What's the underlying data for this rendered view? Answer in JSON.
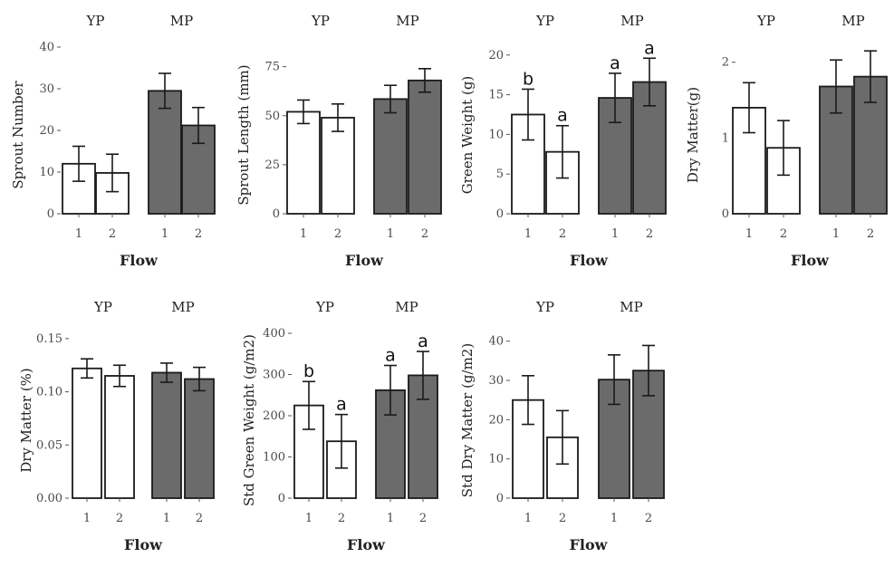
{
  "chart_data": [
    {
      "type": "bar",
      "title": "",
      "facets": [
        "YP",
        "MP"
      ],
      "categories": [
        "1",
        "2"
      ],
      "xlabel": "Flow",
      "ylabel": "Sprout Number",
      "ylim": [
        0,
        40
      ],
      "yticks": [
        "0",
        "10",
        "20",
        "30",
        "40"
      ],
      "ytick_values": [
        0,
        10,
        20,
        30,
        40
      ],
      "series": [
        {
          "name": "YP",
          "values": [
            12,
            9.8
          ],
          "errors": [
            4.2,
            4.5
          ],
          "letters": [
            "",
            ""
          ],
          "color": "#ffffff"
        },
        {
          "name": "MP",
          "values": [
            29.5,
            21.2
          ],
          "errors": [
            4.2,
            4.3
          ],
          "letters": [
            "",
            ""
          ],
          "color": "#6b6b6b"
        }
      ]
    },
    {
      "type": "bar",
      "title": "",
      "facets": [
        "YP",
        "MP"
      ],
      "categories": [
        "1",
        "2"
      ],
      "xlabel": "Flow",
      "ylabel": "Sprout Length (mm)",
      "ylim": [
        0,
        85
      ],
      "yticks": [
        "0",
        "25",
        "50",
        "75"
      ],
      "ytick_values": [
        0,
        25,
        50,
        75
      ],
      "series": [
        {
          "name": "YP",
          "values": [
            52,
            49
          ],
          "errors": [
            6,
            7
          ],
          "letters": [
            "",
            ""
          ],
          "color": "#ffffff"
        },
        {
          "name": "MP",
          "values": [
            58.5,
            68
          ],
          "errors": [
            7,
            6
          ],
          "letters": [
            "",
            ""
          ],
          "color": "#6b6b6b"
        }
      ]
    },
    {
      "type": "bar",
      "title": "",
      "facets": [
        "YP",
        "MP"
      ],
      "categories": [
        "1",
        "2"
      ],
      "xlabel": "Flow",
      "ylabel": "Green Weight (g)",
      "ylim": [
        0,
        21
      ],
      "yticks": [
        "0",
        "5",
        "10",
        "15",
        "20"
      ],
      "ytick_values": [
        0,
        5,
        10,
        15,
        20
      ],
      "series": [
        {
          "name": "YP",
          "values": [
            12.5,
            7.8
          ],
          "errors": [
            3.2,
            3.3
          ],
          "letters": [
            "b",
            "a"
          ],
          "color": "#ffffff"
        },
        {
          "name": "MP",
          "values": [
            14.6,
            16.6
          ],
          "errors": [
            3.1,
            3.0
          ],
          "letters": [
            "a",
            "a"
          ],
          "color": "#6b6b6b"
        }
      ]
    },
    {
      "type": "bar",
      "title": "",
      "facets": [
        "YP",
        "MP"
      ],
      "categories": [
        "1",
        "2"
      ],
      "xlabel": "Flow",
      "ylabel": "Dry Matter(g)",
      "ylim": [
        0,
        2.2
      ],
      "yticks": [
        "0",
        "1",
        "2"
      ],
      "ytick_values": [
        0,
        1,
        2
      ],
      "series": [
        {
          "name": "YP",
          "values": [
            1.4,
            0.87
          ],
          "errors": [
            0.33,
            0.36
          ],
          "letters": [
            "",
            ""
          ],
          "color": "#ffffff"
        },
        {
          "name": "MP",
          "values": [
            1.68,
            1.81
          ],
          "errors": [
            0.35,
            0.34
          ],
          "letters": [
            "",
            ""
          ],
          "color": "#6b6b6b"
        }
      ]
    },
    {
      "type": "bar",
      "title": "",
      "facets": [
        "YP",
        "MP"
      ],
      "categories": [
        "1",
        "2"
      ],
      "xlabel": "Flow",
      "ylabel": "Dry Matter (%)",
      "ylim": [
        0,
        0.155
      ],
      "yticks": [
        "0.00",
        "0.05",
        "0.10",
        "0.15"
      ],
      "ytick_values": [
        0,
        0.05,
        0.1,
        0.15
      ],
      "series": [
        {
          "name": "YP",
          "values": [
            0.122,
            0.115
          ],
          "errors": [
            0.009,
            0.01
          ],
          "letters": [
            "",
            ""
          ],
          "color": "#ffffff"
        },
        {
          "name": "MP",
          "values": [
            0.118,
            0.112
          ],
          "errors": [
            0.009,
            0.011
          ],
          "letters": [
            "",
            ""
          ],
          "color": "#6b6b6b"
        }
      ]
    },
    {
      "type": "bar",
      "title": "",
      "facets": [
        "YP",
        "MP"
      ],
      "categories": [
        "1",
        "2"
      ],
      "xlabel": "Flow",
      "ylabel": "Std Green Weight (g/m2)",
      "ylim": [
        0,
        400
      ],
      "yticks": [
        "0",
        "100",
        "200",
        "300",
        "400"
      ],
      "ytick_values": [
        0,
        100,
        200,
        300,
        400
      ],
      "series": [
        {
          "name": "YP",
          "values": [
            225,
            138
          ],
          "errors": [
            58,
            65
          ],
          "letters": [
            "b",
            "a"
          ],
          "color": "#ffffff"
        },
        {
          "name": "MP",
          "values": [
            262,
            298
          ],
          "errors": [
            60,
            58
          ],
          "letters": [
            "a",
            "a"
          ],
          "color": "#6b6b6b"
        }
      ]
    },
    {
      "type": "bar",
      "title": "",
      "facets": [
        "YP",
        "MP"
      ],
      "categories": [
        "1",
        "2"
      ],
      "xlabel": "Flow",
      "ylabel": "Std Dry Matter (g/m2)",
      "ylim": [
        0,
        42
      ],
      "yticks": [
        "0",
        "10",
        "20",
        "30",
        "40"
      ],
      "ytick_values": [
        0,
        10,
        20,
        30,
        40
      ],
      "series": [
        {
          "name": "YP",
          "values": [
            25,
            15.5
          ],
          "errors": [
            6.2,
            6.8
          ],
          "letters": [
            "",
            ""
          ],
          "color": "#ffffff"
        },
        {
          "name": "MP",
          "values": [
            30.2,
            32.5
          ],
          "errors": [
            6.3,
            6.4
          ],
          "letters": [
            "",
            ""
          ],
          "color": "#6b6b6b"
        }
      ]
    }
  ]
}
